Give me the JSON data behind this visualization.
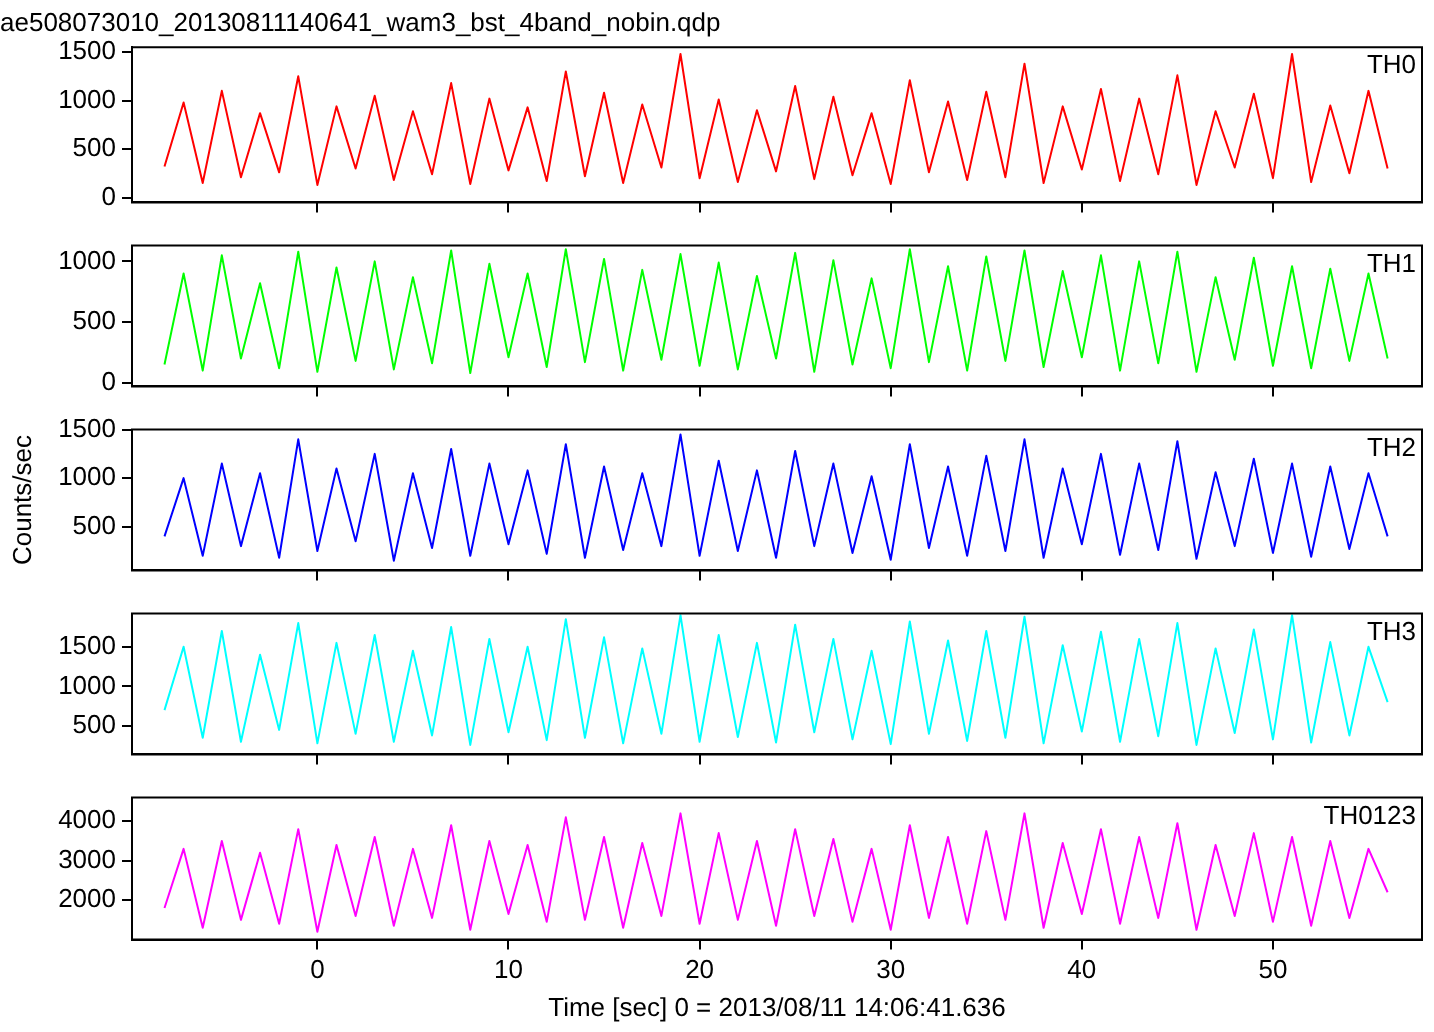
{
  "chart_data": [
    {
      "type": "line",
      "title": "ae508073010_20130811140641_wam3_bst_4band_nobin.qdp",
      "marker": "none",
      "tick_labels": "y",
      "xlim": [
        -9.7,
        57.8
      ],
      "xticks": [
        0,
        10,
        20,
        30,
        40,
        50
      ],
      "ylim": [
        -50,
        1550
      ],
      "yticks": [
        0,
        500,
        1000,
        1500
      ],
      "x": [
        -8,
        -7,
        -6,
        -5,
        -4,
        -3,
        -2,
        -1,
        0,
        1,
        2,
        3,
        4,
        5,
        6,
        7,
        8,
        9,
        10,
        11,
        12,
        13,
        14,
        15,
        16,
        17,
        18,
        19,
        20,
        21,
        22,
        23,
        24,
        25,
        26,
        27,
        28,
        29,
        30,
        31,
        32,
        33,
        34,
        35,
        36,
        37,
        38,
        39,
        40,
        41,
        42,
        43,
        44,
        45,
        46,
        47,
        48,
        49,
        50,
        51,
        52,
        53,
        54,
        55,
        56
      ],
      "series": [
        {
          "name": "TH0",
          "color": "#ff0000",
          "values": [
            320,
            980,
            150,
            1100,
            210,
            870,
            260,
            1250,
            130,
            940,
            300,
            1050,
            180,
            890,
            240,
            1180,
            140,
            1020,
            280,
            930,
            170,
            1300,
            220,
            1080,
            150,
            960,
            310,
            1480,
            200,
            1010,
            160,
            900,
            270,
            1150,
            190,
            1040,
            230,
            870,
            140,
            1210,
            260,
            990,
            180,
            1090,
            210,
            1380,
            150,
            940,
            290,
            1120,
            170,
            1020,
            240,
            1260,
            130,
            890,
            310,
            1070,
            200,
            1480,
            160,
            950,
            250,
            1100,
            300
          ]
        }
      ]
    },
    {
      "type": "line",
      "marker": "none",
      "tick_labels": "y",
      "xlim": [
        -9.7,
        57.8
      ],
      "xticks": [
        0,
        10,
        20,
        30,
        40,
        50
      ],
      "ylim": [
        -30,
        1130
      ],
      "yticks": [
        0,
        500,
        1000
      ],
      "x": [
        -8,
        -7,
        -6,
        -5,
        -4,
        -3,
        -2,
        -1,
        0,
        1,
        2,
        3,
        4,
        5,
        6,
        7,
        8,
        9,
        10,
        11,
        12,
        13,
        14,
        15,
        16,
        17,
        18,
        19,
        20,
        21,
        22,
        23,
        24,
        25,
        26,
        27,
        28,
        29,
        30,
        31,
        32,
        33,
        34,
        35,
        36,
        37,
        38,
        39,
        40,
        41,
        42,
        43,
        44,
        45,
        46,
        47,
        48,
        49,
        50,
        51,
        52,
        53,
        54,
        55,
        56
      ],
      "series": [
        {
          "name": "TH1",
          "color": "#00ff00",
          "values": [
            150,
            900,
            100,
            1050,
            200,
            820,
            120,
            1080,
            90,
            950,
            180,
            1000,
            110,
            870,
            160,
            1090,
            80,
            980,
            210,
            900,
            130,
            1100,
            170,
            1020,
            100,
            930,
            190,
            1060,
            140,
            990,
            110,
            880,
            200,
            1070,
            90,
            1010,
            150,
            860,
            120,
            1100,
            170,
            960,
            100,
            1040,
            180,
            1090,
            130,
            920,
            210,
            1050,
            100,
            1000,
            160,
            1080,
            90,
            870,
            190,
            1030,
            140,
            960,
            120,
            940,
            180,
            900,
            200
          ]
        }
      ]
    },
    {
      "type": "line",
      "ylabel": "Counts/sec",
      "marker": "none",
      "tick_labels": "y",
      "xlim": [
        -9.7,
        57.8
      ],
      "xticks": [
        0,
        10,
        20,
        30,
        40,
        50
      ],
      "ylim": [
        50,
        1500
      ],
      "yticks": [
        500,
        1000,
        1500
      ],
      "x": [
        -8,
        -7,
        -6,
        -5,
        -4,
        -3,
        -2,
        -1,
        0,
        1,
        2,
        3,
        4,
        5,
        6,
        7,
        8,
        9,
        10,
        11,
        12,
        13,
        14,
        15,
        16,
        17,
        18,
        19,
        20,
        21,
        22,
        23,
        24,
        25,
        26,
        27,
        28,
        29,
        30,
        31,
        32,
        33,
        34,
        35,
        36,
        37,
        38,
        39,
        40,
        41,
        42,
        43,
        44,
        45,
        46,
        47,
        48,
        49,
        50,
        51,
        52,
        53,
        54,
        55,
        56
      ],
      "series": [
        {
          "name": "TH2",
          "color": "#0000ff",
          "values": [
            400,
            1000,
            200,
            1150,
            300,
            1050,
            180,
            1400,
            250,
            1100,
            350,
            1250,
            150,
            1050,
            280,
            1300,
            200,
            1150,
            320,
            1080,
            220,
            1350,
            180,
            1120,
            260,
            1050,
            300,
            1450,
            200,
            1180,
            250,
            1080,
            180,
            1280,
            300,
            1150,
            230,
            1020,
            160,
            1350,
            280,
            1120,
            200,
            1230,
            250,
            1400,
            180,
            1100,
            320,
            1250,
            210,
            1150,
            260,
            1380,
            170,
            1060,
            300,
            1200,
            230,
            1150,
            190,
            1120,
            270,
            1050,
            400
          ]
        }
      ]
    },
    {
      "type": "line",
      "marker": "none",
      "tick_labels": "y",
      "xlim": [
        -9.7,
        57.8
      ],
      "xticks": [
        0,
        10,
        20,
        30,
        40,
        50
      ],
      "ylim": [
        140,
        1920
      ],
      "yticks": [
        500,
        1000,
        1500
      ],
      "x": [
        -8,
        -7,
        -6,
        -5,
        -4,
        -3,
        -2,
        -1,
        0,
        1,
        2,
        3,
        4,
        5,
        6,
        7,
        8,
        9,
        10,
        11,
        12,
        13,
        14,
        15,
        16,
        17,
        18,
        19,
        20,
        21,
        22,
        23,
        24,
        25,
        26,
        27,
        28,
        29,
        30,
        31,
        32,
        33,
        34,
        35,
        36,
        37,
        38,
        39,
        40,
        41,
        42,
        43,
        44,
        45,
        46,
        47,
        48,
        49,
        50,
        51,
        52,
        53,
        54,
        55,
        56
      ],
      "series": [
        {
          "name": "TH3",
          "color": "#00ffff",
          "values": [
            700,
            1500,
            350,
            1700,
            300,
            1400,
            450,
            1800,
            280,
            1550,
            400,
            1650,
            300,
            1450,
            380,
            1750,
            260,
            1600,
            420,
            1500,
            320,
            1850,
            350,
            1620,
            280,
            1480,
            400,
            1900,
            300,
            1650,
            360,
            1550,
            290,
            1780,
            420,
            1600,
            330,
            1450,
            270,
            1820,
            400,
            1580,
            310,
            1700,
            350,
            1880,
            280,
            1520,
            430,
            1690,
            300,
            1600,
            370,
            1800,
            260,
            1480,
            410,
            1720,
            330,
            1900,
            290,
            1560,
            380,
            1500,
            800
          ]
        }
      ]
    },
    {
      "type": "line",
      "xlabel": "Time [sec] 0 = 2013/08/11 14:06:41.636",
      "marker": "none",
      "xlim": [
        -9.7,
        57.8
      ],
      "xticks": [
        0,
        10,
        20,
        30,
        40,
        50
      ],
      "ylim": [
        1000,
        4600
      ],
      "yticks": [
        2000,
        3000,
        4000
      ],
      "x": [
        -8,
        -7,
        -6,
        -5,
        -4,
        -3,
        -2,
        -1,
        0,
        1,
        2,
        3,
        4,
        5,
        6,
        7,
        8,
        9,
        10,
        11,
        12,
        13,
        14,
        15,
        16,
        17,
        18,
        19,
        20,
        21,
        22,
        23,
        24,
        25,
        26,
        27,
        28,
        29,
        30,
        31,
        32,
        33,
        34,
        35,
        36,
        37,
        38,
        39,
        40,
        41,
        42,
        43,
        44,
        45,
        46,
        47,
        48,
        49,
        50,
        51,
        52,
        53,
        54,
        55,
        56
      ],
      "series": [
        {
          "name": "TH0123",
          "color": "#ff00ff",
          "values": [
            1800,
            3300,
            1300,
            3500,
            1500,
            3200,
            1400,
            3800,
            1200,
            3400,
            1600,
            3600,
            1350,
            3300,
            1550,
            3900,
            1250,
            3500,
            1650,
            3400,
            1450,
            4100,
            1500,
            3600,
            1300,
            3450,
            1600,
            4200,
            1400,
            3700,
            1500,
            3500,
            1350,
            3800,
            1600,
            3550,
            1450,
            3300,
            1250,
            3900,
            1550,
            3600,
            1400,
            3750,
            1500,
            4200,
            1300,
            3450,
            1650,
            3800,
            1400,
            3600,
            1550,
            3950,
            1250,
            3400,
            1600,
            3700,
            1450,
            3600,
            1350,
            3500,
            1550,
            3300,
            2200
          ]
        }
      ]
    }
  ]
}
